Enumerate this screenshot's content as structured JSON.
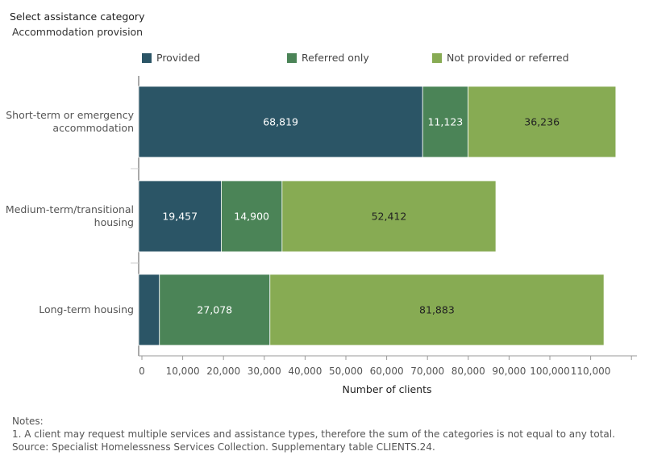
{
  "filter": {
    "title": "Select assistance category",
    "value": "Accommodation provision"
  },
  "legend": [
    {
      "label": "Provided",
      "color": "#2b5566"
    },
    {
      "label": "Referred only",
      "color": "#4b8457"
    },
    {
      "label": "Not provided or referred",
      "color": "#87ab53"
    }
  ],
  "chart_data": {
    "type": "bar",
    "orientation": "horizontal",
    "stacked": true,
    "categories": [
      "Short-term or emergency accommodation",
      "Medium-term/transitional housing",
      "Long-term housing"
    ],
    "category_lines": [
      [
        "Short-term or emergency",
        "accommodation"
      ],
      [
        "Medium-term/transitional",
        "housing"
      ],
      [
        "Long-term housing"
      ]
    ],
    "series": [
      {
        "name": "Provided",
        "values": [
          68819,
          19457,
          4300
        ],
        "labels": [
          "68,819",
          "19,457",
          ""
        ]
      },
      {
        "name": "Referred only",
        "values": [
          11123,
          14900,
          27078
        ],
        "labels": [
          "11,123",
          "14,900",
          "27,078"
        ]
      },
      {
        "name": "Not provided or referred",
        "values": [
          36236,
          52412,
          81883
        ],
        "labels": [
          "36,236",
          "52,412",
          "81,883"
        ]
      }
    ],
    "xlabel": "Number of clients",
    "xlim": [
      0,
      120000
    ],
    "xticks": [
      0,
      10000,
      20000,
      30000,
      40000,
      50000,
      60000,
      70000,
      80000,
      90000,
      100000,
      110000
    ],
    "xtick_labels": [
      "0",
      "10,000",
      "20,000",
      "30,000",
      "40,000",
      "50,000",
      "60,000",
      "70,000",
      "80,000",
      "90,000",
      "100,000",
      "110,000"
    ],
    "legend_position": "top",
    "grid": false
  },
  "notes": {
    "heading": "Notes:",
    "line1": "1. A client may request multiple services and assistance types, therefore the sum of the categories is not equal to any total.",
    "source": "Source: Specialist Homelessness Services Collection. Supplementary table CLIENTS.24."
  }
}
